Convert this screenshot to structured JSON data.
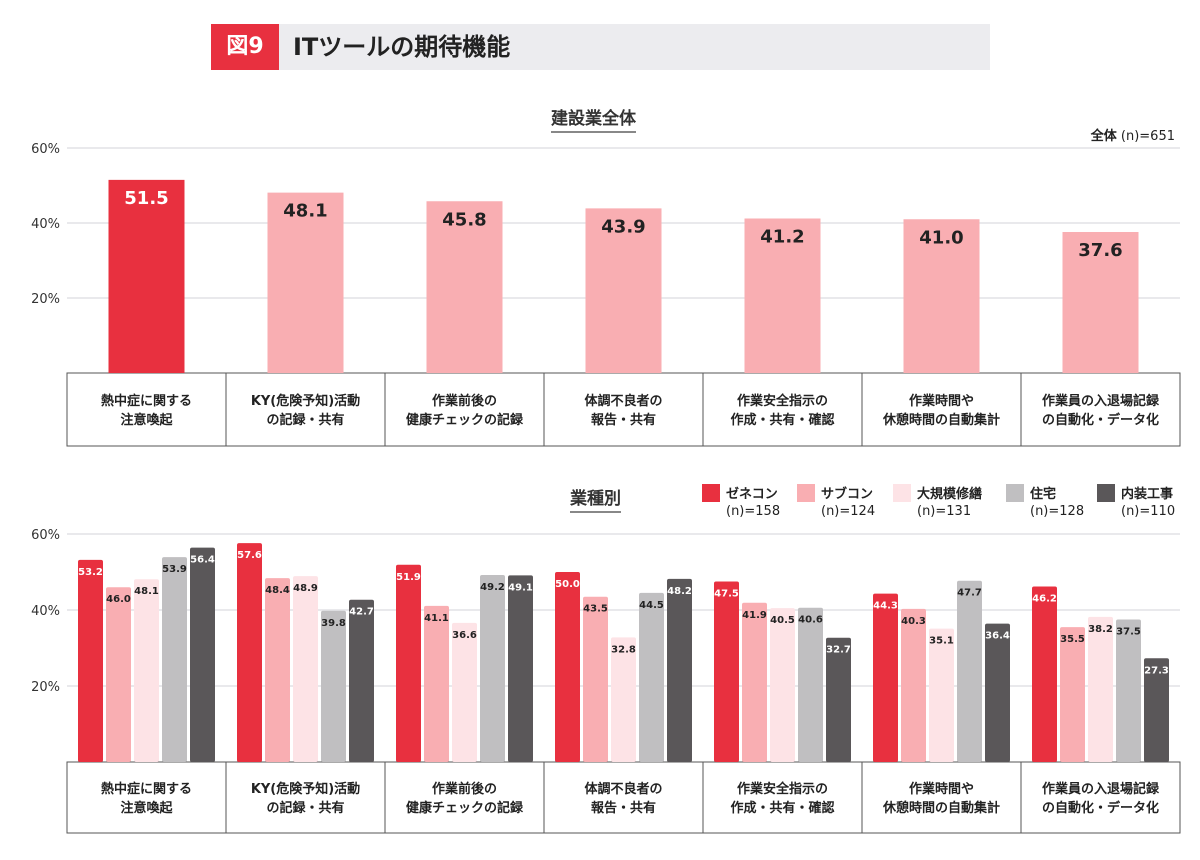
{
  "header": {
    "figure": "図9",
    "title": "ITツールの期待機能"
  },
  "chart_data": [
    {
      "type": "bar",
      "title": "建設業全体",
      "legend": {
        "label": "全体",
        "n": "(n)=651"
      },
      "yticks": [
        "20%",
        "40%",
        "60%"
      ],
      "ylim": [
        0,
        60
      ],
      "grid": true,
      "categories": [
        "熱中症に関する\n注意喚起",
        "KY(危険予知)活動\nの記録・共有",
        "作業前後の\n健康チェックの記録",
        "体調不良者の\n報告・共有",
        "作業安全指示の\n作成・共有・確認",
        "作業時間や\n休憩時間の自動集計",
        "作業員の入退場記録\nの自動化・データ化"
      ],
      "values": [
        51.5,
        48.1,
        45.8,
        43.9,
        41.2,
        41.0,
        37.6
      ],
      "colors": {
        "highlight": "#e8303f",
        "default": "#f9aeb2"
      }
    },
    {
      "type": "bar",
      "title": "業種別",
      "legend_placement": "top-right",
      "yticks": [
        "20%",
        "40%",
        "60%"
      ],
      "ylim": [
        0,
        60
      ],
      "grid": true,
      "categories": [
        "熱中症に関する\n注意喚起",
        "KY(危険予知)活動\nの記録・共有",
        "作業前後の\n健康チェックの記録",
        "体調不良者の\n報告・共有",
        "作業安全指示の\n作成・共有・確認",
        "作業時間や\n休憩時間の自動集計",
        "作業員の入退場記録\nの自動化・データ化"
      ],
      "series": [
        {
          "name": "ゼネコン",
          "n": "(n)=158",
          "color": "#e8303f",
          "label_color": "#fff",
          "values": [
            53.2,
            57.6,
            51.9,
            50.0,
            47.5,
            44.3,
            46.2
          ]
        },
        {
          "name": "サブコン",
          "n": "(n)=124",
          "color": "#f9aeb2",
          "label_color": "#222",
          "values": [
            46.0,
            48.4,
            41.1,
            43.5,
            41.9,
            40.3,
            35.5
          ]
        },
        {
          "name": "大規模修繕",
          "n": "(n)=131",
          "color": "#fde3e6",
          "label_color": "#222",
          "values": [
            48.1,
            48.9,
            36.6,
            32.8,
            40.5,
            35.1,
            38.2
          ]
        },
        {
          "name": "住宅",
          "n": "(n)=128",
          "color": "#c0bfc1",
          "label_color": "#222",
          "values": [
            53.9,
            39.8,
            49.2,
            44.5,
            40.6,
            47.7,
            37.5
          ]
        },
        {
          "name": "内装工事",
          "n": "(n)=110",
          "color": "#5a5759",
          "label_color": "#fff",
          "values": [
            56.4,
            42.7,
            49.1,
            48.2,
            32.7,
            36.4,
            27.3
          ]
        }
      ]
    }
  ]
}
